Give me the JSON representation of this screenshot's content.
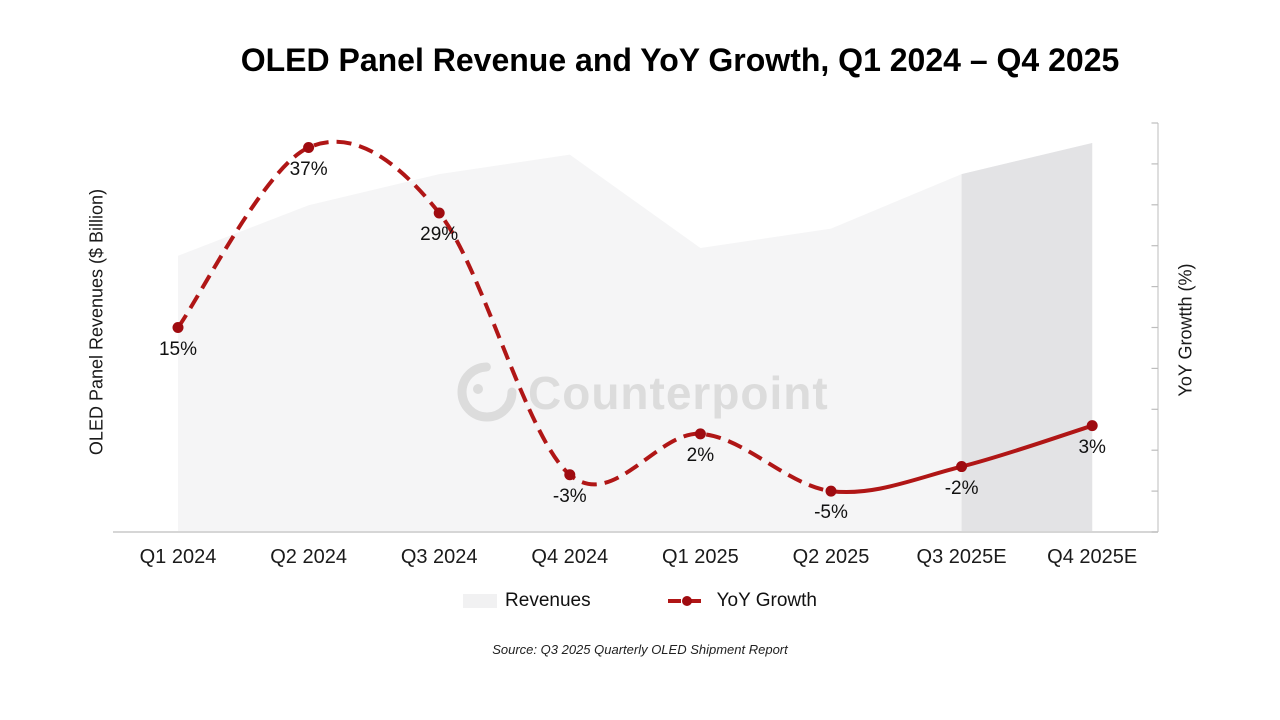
{
  "title": "OLED Panel Revenue and YoY Growth, Q1 2024 – Q4 2025",
  "axes": {
    "left_label": "OLED Panel Revenues ($ Billion)",
    "right_label": "YoY Growtth (%)",
    "left_ticks_labeled": false,
    "right_ticks_labeled": false
  },
  "watermark": "Counterpoint",
  "legend": {
    "revenues": "Revenues",
    "yoy": "YoY Growth"
  },
  "source": "Source: Q3 2025 Quarterly OLED Shipment Report",
  "colors": {
    "line_red": "#b01616",
    "dot_red": "#9f0b10",
    "area_gray": "#f5f5f6",
    "forecast_band_gray": "#e3e3e5",
    "axis_gray": "#c9c9c9",
    "tick_gray": "#bdbdbd",
    "watermark_gray": "#dcdcdc",
    "text_black": "#111111"
  },
  "chart_data": {
    "type": "combo: area + line",
    "categories": [
      "Q1 2024",
      "Q2 2024",
      "Q3 2024",
      "Q4 2024",
      "Q1 2025",
      "Q2 2025",
      "Q3 2025E",
      "Q4 2025E"
    ],
    "series": [
      {
        "name": "Revenues",
        "type": "area",
        "axis": "left",
        "unit": "$ Billion (axis unlabeled, values estimated relative to max = 1.0)",
        "values_relative": [
          0.71,
          0.84,
          0.92,
          0.97,
          0.73,
          0.78,
          0.92,
          1.0
        ]
      },
      {
        "name": "YoY Growth",
        "type": "line",
        "axis": "right",
        "unit": "%",
        "values": [
          15,
          37,
          29,
          -3,
          2,
          -5,
          -2,
          3
        ],
        "labels": [
          "15%",
          "37%",
          "29%",
          "-3%",
          "2%",
          "-5%",
          "-2%",
          "3%"
        ],
        "dashed_until_index": 5,
        "style_note": "dashed through Q2 2025, solid for Q3 2025E - Q4 2025E"
      }
    ],
    "right_axis": {
      "min": -10,
      "max": 40,
      "tick_step": 5,
      "ticks_labeled": false
    },
    "highlight_band": {
      "from": "Q3 2025E",
      "to": "Q4 2025E",
      "note": "darker gray band over estimate quarters"
    },
    "legend_position": "bottom center",
    "grid": false
  }
}
